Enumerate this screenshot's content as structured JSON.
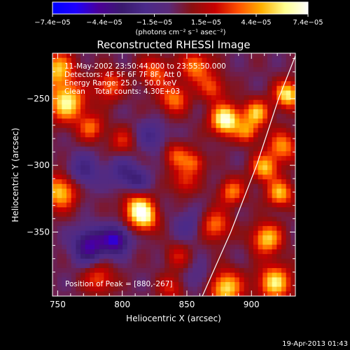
{
  "chart_data": {
    "type": "heatmap",
    "title": "Reconstructed RHESSI Image",
    "xlabel": "Heliocentric X (arcsec)",
    "ylabel": "Heliocentric Y (arcsec)",
    "xlim": [
      746,
      934
    ],
    "ylim": [
      -398,
      -216
    ],
    "x_ticks": [
      750,
      800,
      850,
      900
    ],
    "y_ticks": [
      -250,
      -300,
      -350
    ],
    "colorbar": {
      "range": [
        -7.4e-05,
        7.4e-05
      ],
      "tick_values": [
        -7.4e-05,
        -4.4e-05,
        -1.5e-05,
        1.5e-05,
        4.4e-05,
        7.4e-05
      ],
      "tick_labels": [
        "−7.4e−05",
        "−4.4e−05",
        "−1.5e−05",
        "1.5e−05",
        "4.4e−05",
        "7.4e−05"
      ],
      "units_label": "(photons cm⁻² s⁻¹ asec⁻²)",
      "colormap": [
        "#0000ff",
        "#1e00ff",
        "#4b0097",
        "#3a1a6e",
        "#4a2a8a",
        "#5a2a7a",
        "#8a1010",
        "#c80000",
        "#ff5000",
        "#ffb000",
        "#ffff90",
        "#ffffff"
      ]
    },
    "info_lines": [
      "11-May-2002 23:50:44.000 to 23:55:50.000",
      "Detectors: 4F 5F 6F 7F 8F, Att 0",
      "Energy Range: 25.0 - 50.0 keV",
      "Clean    Total counts: 4.30E+03"
    ],
    "peak_label": "Position of Peak = [880,-267]",
    "peak": {
      "x": 880,
      "y": -267
    },
    "limb_curve": [
      [
        862,
        -398
      ],
      [
        884,
        -350
      ],
      [
        904,
        -300
      ],
      [
        921,
        -250
      ],
      [
        934,
        -218
      ]
    ],
    "blobs": [
      {
        "x": 880,
        "y": -266,
        "amp": 1.0,
        "r": 8
      },
      {
        "x": 757,
        "y": -253,
        "amp": 0.85,
        "r": 10
      },
      {
        "x": 752,
        "y": -320,
        "amp": 0.75,
        "r": 9
      },
      {
        "x": 750,
        "y": -228,
        "amp": 0.7,
        "r": 9
      },
      {
        "x": 812,
        "y": -332,
        "amp": 0.75,
        "r": 8
      },
      {
        "x": 818,
        "y": -340,
        "amp": 0.6,
        "r": 7
      },
      {
        "x": 904,
        "y": -261,
        "amp": 0.7,
        "r": 7
      },
      {
        "x": 928,
        "y": -247,
        "amp": 0.85,
        "r": 7
      },
      {
        "x": 924,
        "y": -286,
        "amp": 0.6,
        "r": 8
      },
      {
        "x": 910,
        "y": -302,
        "amp": 0.7,
        "r": 7
      },
      {
        "x": 922,
        "y": -321,
        "amp": 0.7,
        "r": 7
      },
      {
        "x": 912,
        "y": -355,
        "amp": 0.75,
        "r": 8
      },
      {
        "x": 918,
        "y": -388,
        "amp": 0.8,
        "r": 9
      },
      {
        "x": 880,
        "y": -392,
        "amp": 0.8,
        "r": 9
      },
      {
        "x": 872,
        "y": -345,
        "amp": 0.55,
        "r": 8
      },
      {
        "x": 885,
        "y": -320,
        "amp": 0.55,
        "r": 7
      },
      {
        "x": 857,
        "y": -226,
        "amp": 0.6,
        "r": 8
      },
      {
        "x": 840,
        "y": -250,
        "amp": 0.55,
        "r": 8
      },
      {
        "x": 825,
        "y": -230,
        "amp": 0.5,
        "r": 8
      },
      {
        "x": 790,
        "y": -240,
        "amp": 0.5,
        "r": 8
      },
      {
        "x": 776,
        "y": -272,
        "amp": 0.5,
        "r": 7
      },
      {
        "x": 800,
        "y": -282,
        "amp": 0.35,
        "r": 7
      },
      {
        "x": 842,
        "y": -293,
        "amp": 0.45,
        "r": 7
      },
      {
        "x": 856,
        "y": -298,
        "amp": 0.45,
        "r": 6
      },
      {
        "x": 848,
        "y": -312,
        "amp": 0.4,
        "r": 7
      },
      {
        "x": 782,
        "y": -385,
        "amp": 0.45,
        "r": 8
      },
      {
        "x": 843,
        "y": -368,
        "amp": 0.3,
        "r": 7
      },
      {
        "x": 838,
        "y": -392,
        "amp": 0.35,
        "r": 7
      },
      {
        "x": 897,
        "y": -275,
        "amp": 0.5,
        "r": 6
      },
      {
        "x": 870,
        "y": -242,
        "amp": 0.45,
        "r": 7
      },
      {
        "x": 775,
        "y": -360,
        "amp": -0.65,
        "r": 9
      },
      {
        "x": 795,
        "y": -356,
        "amp": -0.7,
        "r": 7
      },
      {
        "x": 770,
        "y": -305,
        "amp": -0.35,
        "r": 9
      },
      {
        "x": 800,
        "y": -305,
        "amp": -0.3,
        "r": 8
      },
      {
        "x": 823,
        "y": -278,
        "amp": -0.3,
        "r": 8
      },
      {
        "x": 812,
        "y": -312,
        "amp": -0.3,
        "r": 7
      },
      {
        "x": 852,
        "y": -345,
        "amp": -0.25,
        "r": 8
      },
      {
        "x": 860,
        "y": -385,
        "amp": -0.2,
        "r": 8
      }
    ]
  },
  "footer": {
    "timestamp": "19-Apr-2013 01:43"
  }
}
